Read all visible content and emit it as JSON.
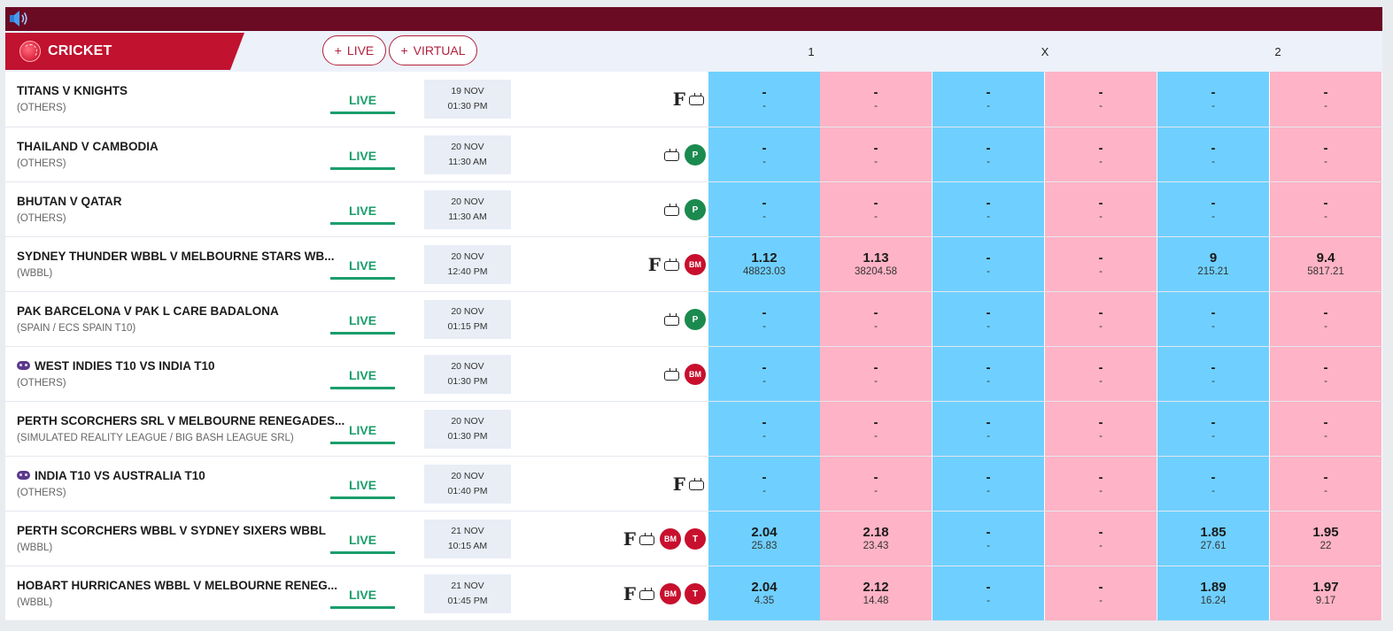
{
  "header": {
    "sport": "CRICKET",
    "filters": [
      {
        "plus": "+",
        "label": "LIVE"
      },
      {
        "plus": "+",
        "label": "VIRTUAL"
      }
    ],
    "odds_columns": [
      "1",
      "X",
      "2"
    ]
  },
  "colors": {
    "topbar": "#6b0a23",
    "sport_tab": "#c1122f",
    "back": "#6fd0ff",
    "lay": "#ffb3c6",
    "live": "#1a9e6b"
  },
  "matches": [
    {
      "name": "TITANS V KNIGHTS",
      "league": "(OTHERS)",
      "status": "LIVE",
      "date": "19 NOV",
      "time": "01:30 PM",
      "virtual": false,
      "icons": [
        "fancy-icon",
        "tv-icon"
      ],
      "odds": [
        [
          "-",
          "-"
        ],
        [
          "-",
          "-"
        ],
        [
          "-",
          "-"
        ],
        [
          "-",
          "-"
        ],
        [
          "-",
          "-"
        ],
        [
          "-",
          "-"
        ]
      ]
    },
    {
      "name": "THAILAND V CAMBODIA",
      "league": "(OTHERS)",
      "status": "LIVE",
      "date": "20 NOV",
      "time": "11:30 AM",
      "virtual": false,
      "icons": [
        "tv-icon",
        "P"
      ],
      "odds": [
        [
          "-",
          "-"
        ],
        [
          "-",
          "-"
        ],
        [
          "-",
          "-"
        ],
        [
          "-",
          "-"
        ],
        [
          "-",
          "-"
        ],
        [
          "-",
          "-"
        ]
      ]
    },
    {
      "name": "BHUTAN V QATAR",
      "league": "(OTHERS)",
      "status": "LIVE",
      "date": "20 NOV",
      "time": "11:30 AM",
      "virtual": false,
      "icons": [
        "tv-icon",
        "P"
      ],
      "odds": [
        [
          "-",
          "-"
        ],
        [
          "-",
          "-"
        ],
        [
          "-",
          "-"
        ],
        [
          "-",
          "-"
        ],
        [
          "-",
          "-"
        ],
        [
          "-",
          "-"
        ]
      ]
    },
    {
      "name": "SYDNEY THUNDER WBBL V MELBOURNE STARS WB...",
      "league": "(WBBL)",
      "status": "LIVE",
      "date": "20 NOV",
      "time": "12:40 PM",
      "virtual": false,
      "icons": [
        "fancy-icon",
        "tv-icon",
        "BM"
      ],
      "odds": [
        [
          "1.12",
          "48823.03"
        ],
        [
          "1.13",
          "38204.58"
        ],
        [
          "-",
          "-"
        ],
        [
          "-",
          "-"
        ],
        [
          "9",
          "215.21"
        ],
        [
          "9.4",
          "5817.21"
        ]
      ]
    },
    {
      "name": "PAK BARCELONA V PAK L CARE BADALONA",
      "league": "(SPAIN / ECS SPAIN T10)",
      "status": "LIVE",
      "date": "20 NOV",
      "time": "01:15 PM",
      "virtual": false,
      "icons": [
        "tv-icon",
        "P"
      ],
      "odds": [
        [
          "-",
          "-"
        ],
        [
          "-",
          "-"
        ],
        [
          "-",
          "-"
        ],
        [
          "-",
          "-"
        ],
        [
          "-",
          "-"
        ],
        [
          "-",
          "-"
        ]
      ]
    },
    {
      "name": "WEST INDIES T10 VS INDIA T10",
      "league": "(OTHERS)",
      "status": "LIVE",
      "date": "20 NOV",
      "time": "01:30 PM",
      "virtual": true,
      "icons": [
        "tv-icon",
        "BM"
      ],
      "odds": [
        [
          "-",
          "-"
        ],
        [
          "-",
          "-"
        ],
        [
          "-",
          "-"
        ],
        [
          "-",
          "-"
        ],
        [
          "-",
          "-"
        ],
        [
          "-",
          "-"
        ]
      ]
    },
    {
      "name": "PERTH SCORCHERS SRL V MELBOURNE RENEGADES...",
      "league": "(SIMULATED REALITY LEAGUE / BIG BASH LEAGUE SRL)",
      "status": "LIVE",
      "date": "20 NOV",
      "time": "01:30 PM",
      "virtual": false,
      "icons": [],
      "odds": [
        [
          "-",
          "-"
        ],
        [
          "-",
          "-"
        ],
        [
          "-",
          "-"
        ],
        [
          "-",
          "-"
        ],
        [
          "-",
          "-"
        ],
        [
          "-",
          "-"
        ]
      ]
    },
    {
      "name": "INDIA T10 VS AUSTRALIA T10",
      "league": "(OTHERS)",
      "status": "LIVE",
      "date": "20 NOV",
      "time": "01:40 PM",
      "virtual": true,
      "icons": [
        "fancy-icon",
        "tv-icon"
      ],
      "odds": [
        [
          "-",
          "-"
        ],
        [
          "-",
          "-"
        ],
        [
          "-",
          "-"
        ],
        [
          "-",
          "-"
        ],
        [
          "-",
          "-"
        ],
        [
          "-",
          "-"
        ]
      ]
    },
    {
      "name": "PERTH SCORCHERS WBBL V SYDNEY SIXERS WBBL",
      "league": "(WBBL)",
      "status": "LIVE",
      "date": "21 NOV",
      "time": "10:15 AM",
      "virtual": false,
      "icons": [
        "fancy-icon",
        "tv-icon",
        "BM",
        "T"
      ],
      "odds": [
        [
          "2.04",
          "25.83"
        ],
        [
          "2.18",
          "23.43"
        ],
        [
          "-",
          "-"
        ],
        [
          "-",
          "-"
        ],
        [
          "1.85",
          "27.61"
        ],
        [
          "1.95",
          "22"
        ]
      ]
    },
    {
      "name": "HOBART HURRICANES WBBL V MELBOURNE RENEG...",
      "league": "(WBBL)",
      "status": "LIVE",
      "date": "21 NOV",
      "time": "01:45 PM",
      "virtual": false,
      "icons": [
        "fancy-icon",
        "tv-icon",
        "BM",
        "T"
      ],
      "odds": [
        [
          "2.04",
          "4.35"
        ],
        [
          "2.12",
          "14.48"
        ],
        [
          "-",
          "-"
        ],
        [
          "-",
          "-"
        ],
        [
          "1.89",
          "16.24"
        ],
        [
          "1.97",
          "9.17"
        ]
      ]
    }
  ]
}
